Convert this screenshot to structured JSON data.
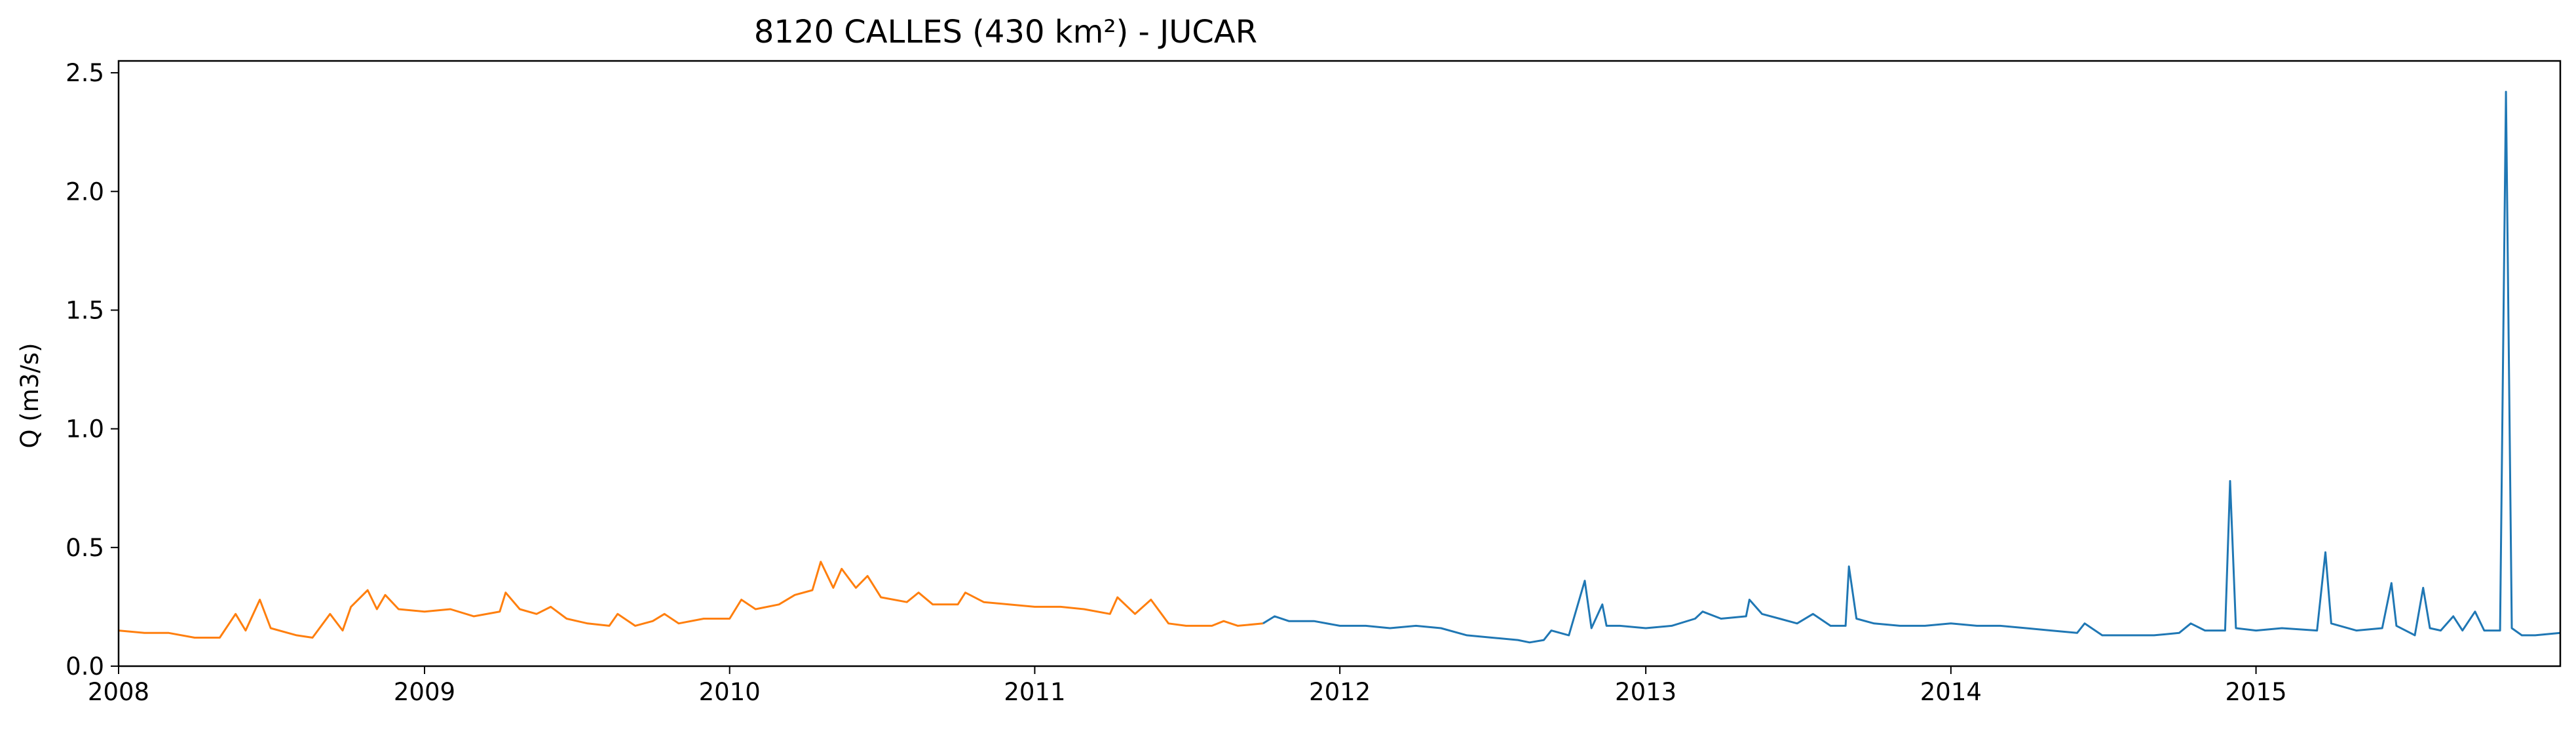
{
  "chart_data": {
    "type": "line",
    "title": "8120 CALLES (430 km²) - JUCAR",
    "xlabel": "",
    "ylabel": "Q (m3/s)",
    "xlim": [
      "2008-01-01",
      "2015-12-31"
    ],
    "ylim": [
      0,
      2.55
    ],
    "x_ticks": [
      "2008",
      "2009",
      "2010",
      "2011",
      "2012",
      "2013",
      "2014",
      "2015"
    ],
    "y_ticks": [
      0.0,
      0.5,
      1.0,
      1.5,
      2.0,
      2.5
    ],
    "y_tick_labels": [
      "0.0",
      "0.5",
      "1.0",
      "1.5",
      "2.0",
      "2.5"
    ],
    "grid": false,
    "legend": "none",
    "series": [
      {
        "color": "#ff7f0e",
        "points": [
          [
            "2008-01-01",
            0.15
          ],
          [
            "2008-02-01",
            0.14
          ],
          [
            "2008-03-01",
            0.14
          ],
          [
            "2008-04-01",
            0.12
          ],
          [
            "2008-05-01",
            0.12
          ],
          [
            "2008-05-20",
            0.22
          ],
          [
            "2008-06-01",
            0.15
          ],
          [
            "2008-06-18",
            0.28
          ],
          [
            "2008-07-01",
            0.16
          ],
          [
            "2008-08-01",
            0.13
          ],
          [
            "2008-08-20",
            0.12
          ],
          [
            "2008-09-10",
            0.22
          ],
          [
            "2008-09-25",
            0.15
          ],
          [
            "2008-10-05",
            0.25
          ],
          [
            "2008-10-25",
            0.32
          ],
          [
            "2008-11-05",
            0.24
          ],
          [
            "2008-11-15",
            0.3
          ],
          [
            "2008-12-01",
            0.24
          ],
          [
            "2009-01-01",
            0.23
          ],
          [
            "2009-02-01",
            0.24
          ],
          [
            "2009-03-01",
            0.21
          ],
          [
            "2009-04-01",
            0.23
          ],
          [
            "2009-04-08",
            0.31
          ],
          [
            "2009-04-25",
            0.24
          ],
          [
            "2009-05-15",
            0.22
          ],
          [
            "2009-06-01",
            0.25
          ],
          [
            "2009-06-20",
            0.2
          ],
          [
            "2009-07-15",
            0.18
          ],
          [
            "2009-08-10",
            0.17
          ],
          [
            "2009-08-20",
            0.22
          ],
          [
            "2009-09-10",
            0.17
          ],
          [
            "2009-10-01",
            0.19
          ],
          [
            "2009-10-15",
            0.22
          ],
          [
            "2009-11-01",
            0.18
          ],
          [
            "2009-12-01",
            0.2
          ],
          [
            "2010-01-01",
            0.2
          ],
          [
            "2010-01-15",
            0.28
          ],
          [
            "2010-02-01",
            0.24
          ],
          [
            "2010-03-01",
            0.26
          ],
          [
            "2010-03-20",
            0.3
          ],
          [
            "2010-04-10",
            0.32
          ],
          [
            "2010-04-20",
            0.44
          ],
          [
            "2010-05-05",
            0.33
          ],
          [
            "2010-05-15",
            0.41
          ],
          [
            "2010-06-01",
            0.33
          ],
          [
            "2010-06-15",
            0.38
          ],
          [
            "2010-07-01",
            0.29
          ],
          [
            "2010-08-01",
            0.27
          ],
          [
            "2010-08-15",
            0.31
          ],
          [
            "2010-09-01",
            0.26
          ],
          [
            "2010-10-01",
            0.26
          ],
          [
            "2010-10-10",
            0.31
          ],
          [
            "2010-11-01",
            0.27
          ],
          [
            "2010-12-01",
            0.26
          ],
          [
            "2011-01-01",
            0.25
          ],
          [
            "2011-02-01",
            0.25
          ],
          [
            "2011-03-01",
            0.24
          ],
          [
            "2011-04-01",
            0.22
          ],
          [
            "2011-04-10",
            0.29
          ],
          [
            "2011-05-01",
            0.22
          ],
          [
            "2011-05-20",
            0.28
          ],
          [
            "2011-06-10",
            0.18
          ],
          [
            "2011-07-01",
            0.17
          ],
          [
            "2011-08-01",
            0.17
          ],
          [
            "2011-08-15",
            0.19
          ],
          [
            "2011-09-01",
            0.17
          ],
          [
            "2011-10-01",
            0.18
          ]
        ]
      },
      {
        "color": "#1f77b4",
        "points": [
          [
            "2011-10-01",
            0.18
          ],
          [
            "2011-10-15",
            0.21
          ],
          [
            "2011-11-01",
            0.19
          ],
          [
            "2011-12-01",
            0.19
          ],
          [
            "2012-01-01",
            0.17
          ],
          [
            "2012-02-01",
            0.17
          ],
          [
            "2012-03-01",
            0.16
          ],
          [
            "2012-04-01",
            0.17
          ],
          [
            "2012-05-01",
            0.16
          ],
          [
            "2012-06-01",
            0.13
          ],
          [
            "2012-07-01",
            0.12
          ],
          [
            "2012-08-01",
            0.11
          ],
          [
            "2012-08-15",
            0.1
          ],
          [
            "2012-09-01",
            0.11
          ],
          [
            "2012-09-10",
            0.15
          ],
          [
            "2012-10-01",
            0.13
          ],
          [
            "2012-10-20",
            0.36
          ],
          [
            "2012-10-28",
            0.16
          ],
          [
            "2012-11-10",
            0.26
          ],
          [
            "2012-11-15",
            0.17
          ],
          [
            "2012-12-01",
            0.17
          ],
          [
            "2013-01-01",
            0.16
          ],
          [
            "2013-02-01",
            0.17
          ],
          [
            "2013-03-01",
            0.2
          ],
          [
            "2013-03-10",
            0.23
          ],
          [
            "2013-04-01",
            0.2
          ],
          [
            "2013-05-01",
            0.21
          ],
          [
            "2013-05-05",
            0.28
          ],
          [
            "2013-05-20",
            0.22
          ],
          [
            "2013-06-10",
            0.2
          ],
          [
            "2013-07-01",
            0.18
          ],
          [
            "2013-07-20",
            0.22
          ],
          [
            "2013-08-10",
            0.17
          ],
          [
            "2013-08-28",
            0.17
          ],
          [
            "2013-09-01",
            0.42
          ],
          [
            "2013-09-10",
            0.2
          ],
          [
            "2013-10-01",
            0.18
          ],
          [
            "2013-11-01",
            0.17
          ],
          [
            "2013-12-01",
            0.17
          ],
          [
            "2014-01-01",
            0.18
          ],
          [
            "2014-02-01",
            0.17
          ],
          [
            "2014-03-01",
            0.17
          ],
          [
            "2014-04-01",
            0.16
          ],
          [
            "2014-05-01",
            0.15
          ],
          [
            "2014-06-01",
            0.14
          ],
          [
            "2014-06-10",
            0.18
          ],
          [
            "2014-07-01",
            0.13
          ],
          [
            "2014-08-01",
            0.13
          ],
          [
            "2014-09-01",
            0.13
          ],
          [
            "2014-10-01",
            0.14
          ],
          [
            "2014-10-15",
            0.18
          ],
          [
            "2014-11-01",
            0.15
          ],
          [
            "2014-11-25",
            0.15
          ],
          [
            "2014-12-01",
            0.78
          ],
          [
            "2014-12-08",
            0.16
          ],
          [
            "2015-01-01",
            0.15
          ],
          [
            "2015-02-01",
            0.16
          ],
          [
            "2015-03-15",
            0.15
          ],
          [
            "2015-03-25",
            0.48
          ],
          [
            "2015-04-01",
            0.18
          ],
          [
            "2015-05-01",
            0.15
          ],
          [
            "2015-06-01",
            0.16
          ],
          [
            "2015-06-12",
            0.35
          ],
          [
            "2015-06-18",
            0.17
          ],
          [
            "2015-07-10",
            0.13
          ],
          [
            "2015-07-20",
            0.33
          ],
          [
            "2015-07-28",
            0.16
          ],
          [
            "2015-08-10",
            0.15
          ],
          [
            "2015-08-25",
            0.21
          ],
          [
            "2015-09-05",
            0.15
          ],
          [
            "2015-09-20",
            0.23
          ],
          [
            "2015-10-01",
            0.15
          ],
          [
            "2015-10-20",
            0.15
          ],
          [
            "2015-10-27",
            2.42
          ],
          [
            "2015-11-03",
            0.16
          ],
          [
            "2015-11-15",
            0.13
          ],
          [
            "2015-12-01",
            0.13
          ],
          [
            "2015-12-31",
            0.14
          ]
        ]
      }
    ]
  }
}
